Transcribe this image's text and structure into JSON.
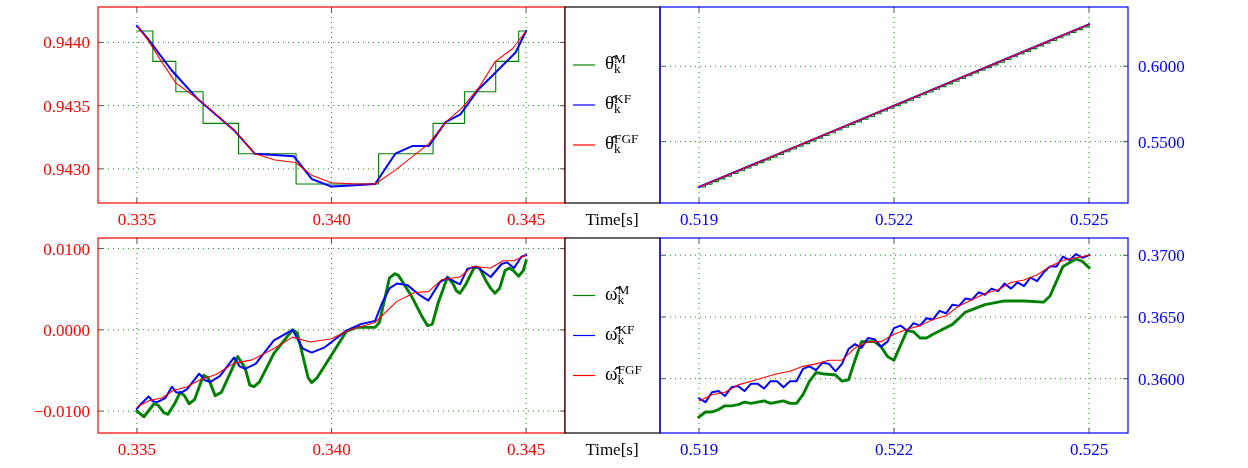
{
  "chart_data": [
    {
      "type": "line",
      "xlim": [
        0.334,
        0.346
      ],
      "xticks": [
        0.335,
        {
          "value": 0.34,
          "label": "0.340"
        },
        0.345
      ],
      "ylim": [
        0.94273,
        0.94428
      ],
      "yticks": [
        {
          "value": 0.943,
          "label": "0.9430"
        },
        {
          "value": 0.9435,
          "label": "0.9435"
        },
        {
          "value": 0.944,
          "label": "0.9440"
        }
      ],
      "grid": true,
      "legend": "right",
      "series": [
        {
          "name": "θ̂$_{k}$$^{M}$",
          "type": "step",
          "color": "#008000",
          "x": [
            0.335,
            0.33541,
            0.336,
            0.3367,
            0.33761,
            0.33909,
            0.34121,
            0.34261,
            0.34342,
            0.34422,
            0.34481,
            0.345
          ],
          "values": [
            0.94409,
            0.94385,
            0.94361,
            0.94336,
            0.94312,
            0.94288,
            0.94312,
            0.94336,
            0.94361,
            0.94385,
            0.94409,
            0.94409
          ]
        },
        {
          "name": "θ̂$_{k}$$^{KF}$",
          "color": "#0000ff",
          "x": [
            0.335,
            0.33528,
            0.33589,
            0.33657,
            0.33748,
            0.33803,
            0.33903,
            0.33949,
            0.34,
            0.34061,
            0.34112,
            0.34164,
            0.34207,
            0.3425,
            0.34293,
            0.34331,
            0.34378,
            0.34408,
            0.34473,
            0.345
          ],
          "values": [
            0.94413,
            0.94403,
            0.94378,
            0.94355,
            0.94331,
            0.94312,
            0.9431,
            0.94292,
            0.94286,
            0.94287,
            0.94288,
            0.94312,
            0.94318,
            0.94318,
            0.94337,
            0.94343,
            0.94363,
            0.94372,
            0.94392,
            0.94409
          ]
        },
        {
          "name": "θ̂$_{k}$$^{FGF}$",
          "color": "#ff0000",
          "x": [
            0.335,
            0.33528,
            0.33563,
            0.336,
            0.3367,
            0.33752,
            0.33803,
            0.33855,
            0.33907,
            0.33949,
            0.34,
            0.34061,
            0.34112,
            0.34164,
            0.3425,
            0.34293,
            0.34335,
            0.34378,
            0.34421,
            0.34465,
            0.345
          ],
          "values": [
            0.94413,
            0.94402,
            0.94385,
            0.94368,
            0.94352,
            0.9433,
            0.94312,
            0.94307,
            0.94305,
            0.94295,
            0.94289,
            0.94288,
            0.94288,
            0.94299,
            0.9432,
            0.94337,
            0.94348,
            0.94364,
            0.94385,
            0.94395,
            0.94409
          ]
        }
      ]
    },
    {
      "type": "line",
      "xlabel": "Time[s]",
      "xlim": [
        0.5184,
        0.5256
      ],
      "xticks": [
        0.519,
        0.522,
        0.525
      ],
      "y2lim": [
        0.5093,
        0.6393
      ],
      "y2ticks": [
        {
          "value": 0.55,
          "label": "0.5500"
        },
        {
          "value": 0.6,
          "label": "0.6000"
        }
      ],
      "grid": true,
      "series": [
        {
          "type": "step",
          "axis": "y2",
          "color": "#008000",
          "x": [
            0.519,
            0.5191,
            0.5192,
            0.5193,
            0.5194,
            0.5195,
            0.5196,
            0.5197,
            0.5198,
            0.5199,
            0.52,
            0.5201,
            0.5202,
            0.5203,
            0.5204,
            0.5205,
            0.5206,
            0.5207,
            0.5208,
            0.5209,
            0.521,
            0.5211,
            0.5212,
            0.5213,
            0.5214,
            0.5215,
            0.5216,
            0.5217,
            0.5218,
            0.5219,
            0.522,
            0.5221,
            0.5222,
            0.5223,
            0.5224,
            0.5225,
            0.5226,
            0.5227,
            0.5228,
            0.5229,
            0.523,
            0.5231,
            0.5232,
            0.5233,
            0.5234,
            0.5235,
            0.5236,
            0.5237,
            0.5238,
            0.5239,
            0.524,
            0.5241,
            0.5242,
            0.5243,
            0.5244,
            0.5245,
            0.5246,
            0.5247,
            0.5248,
            0.5249,
            0.525
          ],
          "values": [
            0.5199,
            0.5217,
            0.5235,
            0.5253,
            0.5271,
            0.5289,
            0.5307,
            0.5325,
            0.5343,
            0.5361,
            0.5379,
            0.5397,
            0.5415,
            0.5433,
            0.5451,
            0.5469,
            0.5487,
            0.5505,
            0.5523,
            0.5541,
            0.5559,
            0.5577,
            0.5595,
            0.5613,
            0.5631,
            0.5649,
            0.5667,
            0.5685,
            0.5703,
            0.5721,
            0.5739,
            0.5757,
            0.5775,
            0.5793,
            0.5811,
            0.5829,
            0.5847,
            0.5865,
            0.5883,
            0.5901,
            0.5919,
            0.5937,
            0.5955,
            0.5973,
            0.5991,
            0.6009,
            0.6027,
            0.6045,
            0.6063,
            0.6081,
            0.6099,
            0.6117,
            0.6135,
            0.6153,
            0.6171,
            0.6189,
            0.6207,
            0.6225,
            0.6243,
            0.6261,
            0.6279
          ]
        },
        {
          "axis": "y2",
          "color": "#0000ff",
          "x": [
            0.519,
            0.522,
            0.525
          ],
          "values": [
            0.5199,
            0.5739,
            0.6279
          ]
        },
        {
          "axis": "y2",
          "color": "#ff0000",
          "x": [
            0.519,
            0.522,
            0.525
          ],
          "values": [
            0.5199,
            0.5739,
            0.6279
          ]
        }
      ]
    },
    {
      "type": "line",
      "xlim": [
        0.334,
        0.346
      ],
      "xticks": [
        0.335,
        {
          "value": 0.34,
          "label": "0.340"
        },
        0.345
      ],
      "ylim": [
        -0.0127,
        0.0113
      ],
      "yticks": [
        {
          "value": -0.01,
          "label": "−0.0100"
        },
        {
          "value": 0,
          "label": "0.0000"
        },
        {
          "value": 0.01,
          "label": "0.0100"
        }
      ],
      "grid": true,
      "legend": "right",
      "series": [
        {
          "name": "ω̂$_{k}$$^{M}$",
          "color": "#008000",
          "x": [
            0.335,
            0.33518,
            0.33544,
            0.33555,
            0.33569,
            0.3358,
            0.33598,
            0.33611,
            0.33622,
            0.33634,
            0.33648,
            0.33671,
            0.33683,
            0.33701,
            0.33717,
            0.33759,
            0.33778,
            0.3379,
            0.33801,
            0.33815,
            0.33852,
            0.339,
            0.33912,
            0.3394,
            0.33949,
            0.33963,
            0.34,
            0.34038,
            0.34065,
            0.34112,
            0.34123,
            0.34149,
            0.34163,
            0.34172,
            0.34205,
            0.34233,
            0.34247,
            0.34259,
            0.34274,
            0.34298,
            0.34312,
            0.34321,
            0.3433,
            0.34344,
            0.34367,
            0.34381,
            0.34395,
            0.34409,
            0.3442,
            0.34432,
            0.34446,
            0.34457,
            0.34467,
            0.34481,
            0.34493,
            0.345
          ],
          "values": [
            -0.01,
            -0.0107,
            -0.0091,
            -0.0093,
            -0.0102,
            -0.0104,
            -0.009,
            -0.0077,
            -0.0081,
            -0.0091,
            -0.0086,
            -0.0056,
            -0.0059,
            -0.0081,
            -0.0077,
            -0.0033,
            -0.0047,
            -0.0068,
            -0.007,
            -0.0064,
            -0.0029,
            0,
            -0.0004,
            -0.0059,
            -0.0065,
            -0.0059,
            -0.0031,
            -0.0002,
            0.0003,
            0.0003,
            0.0009,
            0.0064,
            0.0069,
            0.0067,
            0.0042,
            0.0016,
            0.0005,
            0.0007,
            0.0033,
            0.0065,
            0.0057,
            0.0048,
            0.0045,
            0.0055,
            0.0077,
            0.0076,
            0.0062,
            0.0051,
            0.0045,
            0.0051,
            0.0073,
            0.0076,
            0.0073,
            0.0066,
            0.0073,
            0.0085
          ]
        },
        {
          "name": "ω̂$_{k}$$^{KF}$",
          "color": "#0000ff",
          "x": [
            0.335,
            0.33513,
            0.3353,
            0.33541,
            0.33552,
            0.33573,
            0.3359,
            0.33601,
            0.33615,
            0.33629,
            0.3366,
            0.33674,
            0.33689,
            0.33713,
            0.3375,
            0.33764,
            0.33778,
            0.33805,
            0.33852,
            0.339,
            0.33926,
            0.33949,
            0.33981,
            0.34038,
            0.34075,
            0.34112,
            0.3413,
            0.34149,
            0.34168,
            0.34195,
            0.34223,
            0.34249,
            0.34279,
            0.34298,
            0.3433,
            0.34349,
            0.34372,
            0.34409,
            0.34437,
            0.34451,
            0.34469,
            0.34488,
            0.345
          ],
          "values": [
            -0.0097,
            -0.009,
            -0.0082,
            -0.0088,
            -0.0089,
            -0.0084,
            -0.007,
            -0.0077,
            -0.0077,
            -0.0073,
            -0.0054,
            -0.0062,
            -0.0064,
            -0.0057,
            -0.0034,
            -0.0045,
            -0.0048,
            -0.0042,
            -0.0013,
            0,
            -0.0023,
            -0.0028,
            -0.0022,
            -0.0001,
            0.0007,
            0.0011,
            0.0033,
            0.0051,
            0.0057,
            0.0055,
            0.0044,
            0.0036,
            0.0059,
            0.0064,
            0.0056,
            0.0075,
            0.0078,
            0.0065,
            0.0081,
            0.0083,
            0.0076,
            0.009,
            0.0092
          ]
        },
        {
          "name": "ω̂$_{k}$$^{FGF}$",
          "color": "#ff0000",
          "x": [
            0.335,
            0.33532,
            0.33564,
            0.33592,
            0.33629,
            0.3366,
            0.33703,
            0.3375,
            0.33796,
            0.33852,
            0.339,
            0.33945,
            0.34,
            0.34047,
            0.34112,
            0.34168,
            0.34214,
            0.34249,
            0.34284,
            0.3433,
            0.34363,
            0.34409,
            0.34441,
            0.34469,
            0.345
          ],
          "values": [
            -0.0095,
            -0.0087,
            -0.0084,
            -0.0075,
            -0.007,
            -0.0062,
            -0.0055,
            -0.0041,
            -0.0037,
            -0.0023,
            -0.0009,
            -0.0015,
            -0.0011,
            0,
            0.0009,
            0.0035,
            0.0046,
            0.0047,
            0.0062,
            0.0065,
            0.0078,
            0.0076,
            0.0085,
            0.0085,
            0.0092
          ]
        }
      ]
    },
    {
      "type": "line",
      "xlabel": "Time[s]",
      "xlim": [
        0.5184,
        0.5256
      ],
      "xticks": [
        0.519,
        0.522,
        0.525
      ],
      "y2lim": [
        0.3556,
        0.3714
      ],
      "y2ticks": [
        {
          "value": 0.36,
          "label": "0.3600"
        },
        {
          "value": 0.365,
          "label": "0.3650"
        },
        {
          "value": 0.37,
          "label": "0.3700"
        }
      ],
      "grid": true,
      "series": [
        {
          "axis": "y2",
          "color": "#008000",
          "x": [
            0.519,
            0.5191,
            0.5192,
            0.5193,
            0.5194,
            0.5195,
            0.5196,
            0.5197,
            0.5198,
            0.5199,
            0.52,
            0.5201,
            0.5202,
            0.5203,
            0.5204,
            0.5205,
            0.5206,
            0.5207,
            0.5208,
            0.5209,
            0.5211,
            0.5212,
            0.5213,
            0.5214,
            0.5215,
            0.5217,
            0.5218,
            0.5219,
            0.522,
            0.5222,
            0.5223,
            0.5224,
            0.5225,
            0.5226,
            0.5229,
            0.5231,
            0.5234,
            0.5237,
            0.524,
            0.5243,
            0.5244,
            0.5246,
            0.5248,
            0.5249,
            0.525
          ],
          "values": [
            0.3569,
            0.3573,
            0.3573,
            0.3575,
            0.3578,
            0.3578,
            0.3579,
            0.3581,
            0.358,
            0.3581,
            0.3582,
            0.358,
            0.3581,
            0.3582,
            0.358,
            0.358,
            0.3587,
            0.3598,
            0.3605,
            0.3604,
            0.3603,
            0.3598,
            0.3599,
            0.3615,
            0.363,
            0.363,
            0.3626,
            0.3618,
            0.3615,
            0.3639,
            0.3638,
            0.3633,
            0.3633,
            0.3636,
            0.3644,
            0.3654,
            0.366,
            0.3663,
            0.3663,
            0.3662,
            0.3667,
            0.3691,
            0.3697,
            0.3695,
            0.369
          ]
        },
        {
          "axis": "y2",
          "color": "#0000ff",
          "x": [
            0.519,
            0.5191,
            0.5192,
            0.5193,
            0.5194,
            0.5195,
            0.5196,
            0.5197,
            0.5198,
            0.5199,
            0.52,
            0.5201,
            0.5202,
            0.5203,
            0.5204,
            0.5205,
            0.5206,
            0.5207,
            0.5208,
            0.5209,
            0.521,
            0.5211,
            0.5212,
            0.5213,
            0.5214,
            0.5215,
            0.5216,
            0.5217,
            0.5218,
            0.5219,
            0.522,
            0.5221,
            0.5222,
            0.5223,
            0.5224,
            0.5225,
            0.5226,
            0.5227,
            0.5228,
            0.5229,
            0.523,
            0.5231,
            0.5232,
            0.5233,
            0.5234,
            0.5235,
            0.5236,
            0.5237,
            0.5238,
            0.5239,
            0.524,
            0.5241,
            0.5242,
            0.5243,
            0.5244,
            0.5245,
            0.5246,
            0.5247,
            0.5248,
            0.5249,
            0.525
          ],
          "values": [
            0.3584,
            0.3581,
            0.3589,
            0.359,
            0.3586,
            0.3593,
            0.3594,
            0.359,
            0.3596,
            0.3596,
            0.3592,
            0.3598,
            0.3598,
            0.3593,
            0.3598,
            0.3598,
            0.3608,
            0.361,
            0.3607,
            0.3613,
            0.3612,
            0.3606,
            0.3612,
            0.3624,
            0.3628,
            0.3625,
            0.3633,
            0.3632,
            0.3626,
            0.363,
            0.3641,
            0.3643,
            0.3639,
            0.3645,
            0.3643,
            0.3649,
            0.3648,
            0.3655,
            0.3653,
            0.366,
            0.3659,
            0.3665,
            0.3664,
            0.367,
            0.3668,
            0.3673,
            0.3671,
            0.3677,
            0.3673,
            0.3678,
            0.3675,
            0.3682,
            0.3679,
            0.3686,
            0.3691,
            0.3691,
            0.3699,
            0.3696,
            0.3701,
            0.3698,
            0.37
          ]
        },
        {
          "axis": "y2",
          "color": "#ff0000",
          "x": [
            0.519,
            0.5192,
            0.5194,
            0.5196,
            0.5198,
            0.52,
            0.5202,
            0.5204,
            0.5206,
            0.5208,
            0.521,
            0.5212,
            0.5214,
            0.5216,
            0.5218,
            0.522,
            0.5222,
            0.5224,
            0.5226,
            0.5228,
            0.523,
            0.5232,
            0.5234,
            0.5236,
            0.5238,
            0.524,
            0.5242,
            0.5244,
            0.5246,
            0.5248,
            0.525
          ],
          "values": [
            0.3582,
            0.3587,
            0.3589,
            0.3595,
            0.3598,
            0.3601,
            0.3604,
            0.3606,
            0.361,
            0.3612,
            0.3615,
            0.3615,
            0.3625,
            0.363,
            0.363,
            0.3636,
            0.364,
            0.3643,
            0.3648,
            0.3651,
            0.3659,
            0.3664,
            0.3669,
            0.3672,
            0.3678,
            0.368,
            0.3684,
            0.3691,
            0.3696,
            0.3698,
            0.37
          ]
        }
      ]
    }
  ]
}
